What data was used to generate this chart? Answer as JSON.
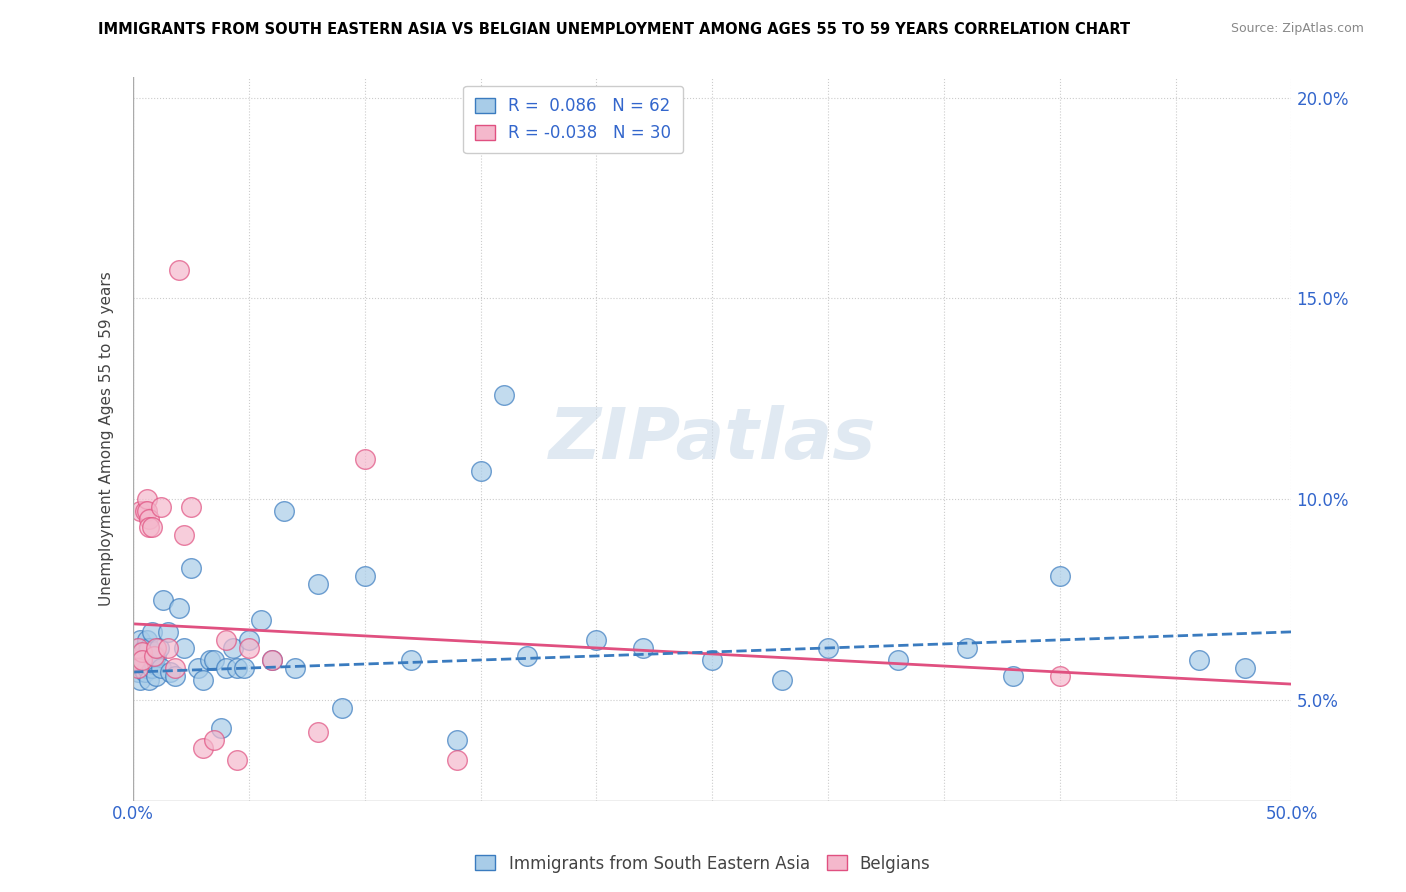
{
  "title": "IMMIGRANTS FROM SOUTH EASTERN ASIA VS BELGIAN UNEMPLOYMENT AMONG AGES 55 TO 59 YEARS CORRELATION CHART",
  "source": "Source: ZipAtlas.com",
  "ylabel": "Unemployment Among Ages 55 to 59 years",
  "xlim": [
    0.0,
    0.5
  ],
  "ylim": [
    0.025,
    0.205
  ],
  "xticks": [
    0.0,
    0.05,
    0.1,
    0.15,
    0.2,
    0.25,
    0.3,
    0.35,
    0.4,
    0.45,
    0.5
  ],
  "xticklabels": [
    "0.0%",
    "",
    "",
    "",
    "",
    "",
    "",
    "",
    "",
    "",
    "50.0%"
  ],
  "ytick_positions": [
    0.05,
    0.1,
    0.15,
    0.2
  ],
  "ytick_labels": [
    "5.0%",
    "10.0%",
    "15.0%",
    "20.0%"
  ],
  "watermark": "ZIPatlas",
  "legend_r1": "R =  0.086",
  "legend_n1": "N = 62",
  "legend_r2": "R = -0.038",
  "legend_n2": "N = 30",
  "color_blue": "#a8cce8",
  "color_pink": "#f4b8cc",
  "color_blue_line": "#3a7bbf",
  "color_pink_line": "#e05080",
  "blue_scatter_x": [
    0.001,
    0.002,
    0.002,
    0.003,
    0.003,
    0.004,
    0.004,
    0.005,
    0.005,
    0.006,
    0.006,
    0.006,
    0.007,
    0.007,
    0.008,
    0.008,
    0.009,
    0.009,
    0.01,
    0.01,
    0.011,
    0.012,
    0.013,
    0.015,
    0.016,
    0.018,
    0.02,
    0.022,
    0.025,
    0.028,
    0.03,
    0.033,
    0.035,
    0.038,
    0.04,
    0.043,
    0.045,
    0.048,
    0.05,
    0.055,
    0.06,
    0.065,
    0.07,
    0.08,
    0.09,
    0.1,
    0.12,
    0.14,
    0.15,
    0.16,
    0.17,
    0.2,
    0.22,
    0.25,
    0.28,
    0.3,
    0.33,
    0.36,
    0.38,
    0.4,
    0.46,
    0.48
  ],
  "blue_scatter_y": [
    0.06,
    0.063,
    0.057,
    0.065,
    0.055,
    0.06,
    0.058,
    0.063,
    0.057,
    0.065,
    0.062,
    0.058,
    0.063,
    0.055,
    0.067,
    0.058,
    0.06,
    0.059,
    0.061,
    0.056,
    0.063,
    0.058,
    0.075,
    0.067,
    0.057,
    0.056,
    0.073,
    0.063,
    0.083,
    0.058,
    0.055,
    0.06,
    0.06,
    0.043,
    0.058,
    0.063,
    0.058,
    0.058,
    0.065,
    0.07,
    0.06,
    0.097,
    0.058,
    0.079,
    0.048,
    0.081,
    0.06,
    0.04,
    0.107,
    0.126,
    0.061,
    0.065,
    0.063,
    0.06,
    0.055,
    0.063,
    0.06,
    0.063,
    0.056,
    0.081,
    0.06,
    0.058
  ],
  "pink_scatter_x": [
    0.001,
    0.002,
    0.002,
    0.003,
    0.004,
    0.004,
    0.005,
    0.006,
    0.006,
    0.007,
    0.007,
    0.008,
    0.009,
    0.01,
    0.012,
    0.015,
    0.018,
    0.02,
    0.022,
    0.025,
    0.03,
    0.035,
    0.04,
    0.045,
    0.05,
    0.06,
    0.08,
    0.1,
    0.14,
    0.4
  ],
  "pink_scatter_y": [
    0.06,
    0.058,
    0.063,
    0.097,
    0.062,
    0.06,
    0.097,
    0.1,
    0.097,
    0.095,
    0.093,
    0.093,
    0.061,
    0.063,
    0.098,
    0.063,
    0.058,
    0.157,
    0.091,
    0.098,
    0.038,
    0.04,
    0.065,
    0.035,
    0.063,
    0.06,
    0.042,
    0.11,
    0.035,
    0.056
  ],
  "blue_trend_x": [
    0.0,
    0.5
  ],
  "blue_trend_y": [
    0.057,
    0.067
  ],
  "pink_trend_x": [
    0.0,
    0.5
  ],
  "pink_trend_y": [
    0.069,
    0.054
  ]
}
